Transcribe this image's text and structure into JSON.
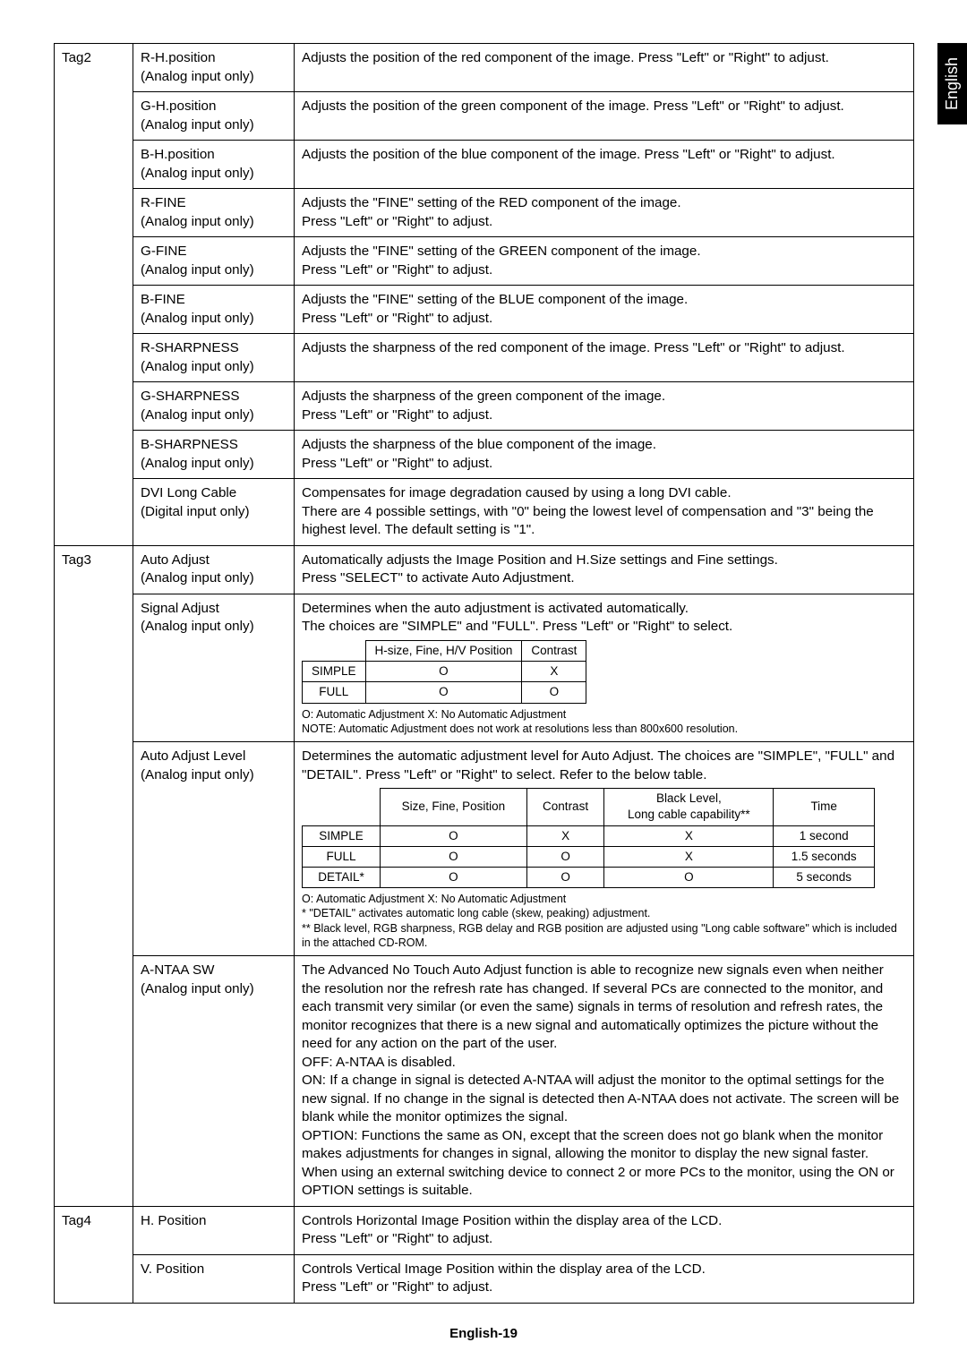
{
  "lang_tab": "English",
  "footer": "English-19",
  "rows": [
    {
      "tag": "Tag2",
      "label": "R-H.position\n(Analog input only)",
      "desc": "Adjusts the position of the red component of the image. Press \"Left\" or \"Right\" to adjust."
    },
    {
      "label": "G-H.position\n(Analog input only)",
      "desc": "Adjusts the position of the green component of the image. Press \"Left\" or \"Right\" to adjust."
    },
    {
      "label": "B-H.position\n(Analog input only)",
      "desc": "Adjusts the position of the blue component of the image. Press \"Left\" or \"Right\" to adjust."
    },
    {
      "label": "R-FINE\n(Analog input only)",
      "desc": "Adjusts the \"FINE\" setting of the RED component of the image.\nPress \"Left\" or \"Right\" to adjust."
    },
    {
      "label": "G-FINE\n(Analog input only)",
      "desc": "Adjusts the \"FINE\" setting of the GREEN component of the image.\nPress \"Left\" or \"Right\" to adjust."
    },
    {
      "label": "B-FINE\n(Analog input only)",
      "desc": "Adjusts the \"FINE\" setting of the BLUE component of the image.\nPress \"Left\" or \"Right\" to adjust."
    },
    {
      "label": "R-SHARPNESS\n(Analog input only)",
      "desc": "Adjusts the sharpness of the red component of the image. Press \"Left\" or \"Right\" to adjust."
    },
    {
      "label": "G-SHARPNESS\n(Analog input only)",
      "desc": "Adjusts the sharpness of the green component of the image.\nPress \"Left\" or \"Right\" to adjust."
    },
    {
      "label": "B-SHARPNESS\n(Analog input only)",
      "desc": "Adjusts the sharpness of the blue component of the image.\nPress \"Left\" or \"Right\" to adjust."
    },
    {
      "label": "DVI Long Cable\n(Digital input only)",
      "desc": "Compensates for image degradation caused by using a long DVI cable.\nThere are 4 possible settings, with \"0\" being the lowest level of compensation and \"3\" being the highest level. The default setting is \"1\"."
    },
    {
      "tag": "Tag3",
      "label": "Auto Adjust\n(Analog input only)",
      "desc": "Automatically adjusts the Image Position and H.Size settings and Fine settings.\nPress \"SELECT\" to activate Auto Adjustment."
    },
    {
      "label": "Signal Adjust\n(Analog input only)",
      "desc_pre": "Determines when the auto adjustment is activated automatically.\nThe choices are \"SIMPLE\" and \"FULL\". Press \"Left\" or \"Right\" to select.",
      "table1_head": [
        "",
        "H-size, Fine, H/V Position",
        "Contrast"
      ],
      "table1_rows": [
        [
          "SIMPLE",
          "O",
          "X"
        ],
        [
          "FULL",
          "O",
          "O"
        ]
      ],
      "note1": "O: Automatic Adjustment   X: No Automatic Adjustment\nNOTE: Automatic Adjustment does not work at resolutions less than 800x600 resolution."
    },
    {
      "label": "Auto Adjust Level\n(Analog input only)",
      "desc_pre": "Determines the automatic adjustment level for Auto Adjust. The choices are \"SIMPLE\", \"FULL\" and \"DETAIL\". Press \"Left\" or \"Right\" to select. Refer to the below table.",
      "table2_head": [
        "",
        "Size, Fine, Position",
        "Contrast",
        "Black Level,\nLong cable capability**",
        "Time"
      ],
      "table2_rows": [
        [
          "SIMPLE",
          "O",
          "X",
          "X",
          "1 second"
        ],
        [
          "FULL",
          "O",
          "O",
          "X",
          "1.5 seconds"
        ],
        [
          "DETAIL*",
          "O",
          "O",
          "O",
          "5 seconds"
        ]
      ],
      "note2": "O: Automatic Adjustment X: No Automatic Adjustment\n* \"DETAIL\" activates automatic long cable (skew, peaking) adjustment.\n** Black level, RGB sharpness, RGB delay and RGB position are adjusted using \"Long cable software\" which is included in the attached CD-ROM."
    },
    {
      "label": "A-NTAA SW\n(Analog input only)",
      "desc": "The Advanced No Touch Auto Adjust function is able to recognize new signals even when neither the resolution nor the refresh rate has changed. If several PCs are connected to the monitor, and each transmit very similar (or even the same) signals in terms of resolution and refresh rates, the monitor recognizes that there is a new signal and automatically optimizes the picture without the need for any action on the part of the user.\nOFF: A-NTAA is disabled.\nON: If a change in signal is detected A-NTAA will adjust the monitor to the optimal settings for the new signal. If no change in the signal is detected then A-NTAA does not activate. The screen will be blank while the monitor optimizes the signal.\nOPTION: Functions the same as ON, except that the screen does not go blank when the monitor makes adjustments for changes in signal, allowing the monitor to display the new signal faster. When using an external switching device to connect 2 or more PCs to the monitor, using the ON or OPTION settings is suitable."
    },
    {
      "tag": "Tag4",
      "label": "H. Position",
      "desc": "Controls Horizontal Image Position within the display area of the LCD.\nPress \"Left\" or \"Right\" to adjust."
    },
    {
      "label": "V. Position",
      "desc": "Controls Vertical Image Position within the display area of the LCD.\nPress \"Left\" or \"Right\" to adjust."
    }
  ]
}
